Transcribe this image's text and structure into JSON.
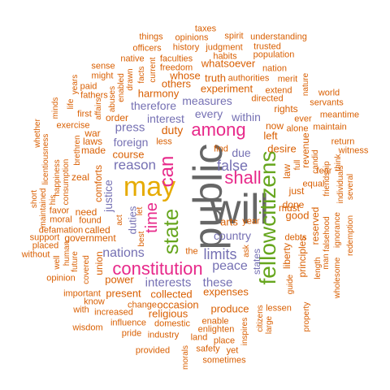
{
  "palette": {
    "orange": "#D95F02",
    "purple": "#7570B3",
    "magenta": "#E7298A",
    "green": "#66A61E",
    "gold": "#E6AB02",
    "gray": "#666666"
  },
  "words": [
    {
      "text": "public",
      "freq": 10,
      "color": "gray"
    },
    {
      "text": "will",
      "freq": 10,
      "color": "gray"
    },
    {
      "text": "may",
      "freq": 7,
      "color": "gold"
    },
    {
      "text": "fellowcitizens",
      "freq": 7,
      "color": "green"
    },
    {
      "text": "state",
      "freq": 6,
      "color": "green"
    },
    {
      "text": "constitution",
      "freq": 6,
      "color": "magenta"
    },
    {
      "text": "shall",
      "freq": 6,
      "color": "magenta"
    },
    {
      "text": "among",
      "freq": 6,
      "color": "magenta"
    },
    {
      "text": "can",
      "freq": 6,
      "color": "magenta"
    },
    {
      "text": "time",
      "freq": 5,
      "color": "magenta"
    },
    {
      "text": "false",
      "freq": 5,
      "color": "purple"
    },
    {
      "text": "limits",
      "freq": 5,
      "color": "purple"
    },
    {
      "text": "reason",
      "freq": 5,
      "color": "purple"
    },
    {
      "text": "nations",
      "freq": 5,
      "color": "purple"
    },
    {
      "text": "peace",
      "freq": 5,
      "color": "purple"
    },
    {
      "text": "interests",
      "freq": 5,
      "color": "purple"
    },
    {
      "text": "these",
      "freq": 5,
      "color": "purple"
    },
    {
      "text": "country",
      "freq": 5,
      "color": "purple"
    },
    {
      "text": "measures",
      "freq": 5,
      "color": "purple"
    },
    {
      "text": "therefore",
      "freq": 4,
      "color": "purple"
    },
    {
      "text": "press",
      "freq": 4,
      "color": "purple"
    },
    {
      "text": "foreign",
      "freq": 4,
      "color": "purple"
    },
    {
      "text": "justice",
      "freq": 4,
      "color": "purple"
    },
    {
      "text": "interest",
      "freq": 4,
      "color": "purple"
    },
    {
      "text": "every",
      "freq": 4,
      "color": "purple"
    },
    {
      "text": "within",
      "freq": 4,
      "color": "purple"
    },
    {
      "text": "due",
      "freq": 4,
      "color": "purple"
    },
    {
      "text": "duties",
      "freq": 4,
      "color": "purple"
    },
    {
      "text": "states",
      "freq": 4,
      "color": "purple"
    },
    {
      "text": "duty",
      "freq": 4,
      "color": "orange"
    },
    {
      "text": "harmony",
      "freq": 3,
      "color": "orange"
    },
    {
      "text": "others",
      "freq": 3,
      "color": "orange"
    },
    {
      "text": "experiment",
      "freq": 3,
      "color": "orange"
    },
    {
      "text": "whatsoever",
      "freq": 3,
      "color": "orange"
    },
    {
      "text": "whose",
      "freq": 3,
      "color": "orange"
    },
    {
      "text": "truth",
      "freq": 3,
      "color": "orange"
    },
    {
      "text": "rights",
      "freq": 3,
      "color": "orange"
    },
    {
      "text": "left",
      "freq": 3,
      "color": "orange"
    },
    {
      "text": "now",
      "freq": 3,
      "color": "orange"
    },
    {
      "text": "desire",
      "freq": 3,
      "color": "orange"
    },
    {
      "text": "must",
      "freq": 3,
      "color": "orange"
    },
    {
      "text": "good",
      "freq": 3,
      "color": "orange"
    },
    {
      "text": "just",
      "freq": 3,
      "color": "orange"
    },
    {
      "text": "done",
      "freq": 3,
      "color": "orange"
    },
    {
      "text": "course",
      "freq": 3,
      "color": "orange"
    },
    {
      "text": "made",
      "freq": 3,
      "color": "orange"
    },
    {
      "text": "zeal",
      "freq": 3,
      "color": "orange"
    },
    {
      "text": "laws",
      "freq": 3,
      "color": "orange"
    },
    {
      "text": "war",
      "freq": 3,
      "color": "orange"
    },
    {
      "text": "order",
      "freq": 3,
      "color": "orange"
    },
    {
      "text": "comforts",
      "freq": 3,
      "color": "orange"
    },
    {
      "text": "need",
      "freq": 3,
      "color": "orange"
    },
    {
      "text": "called",
      "freq": 3,
      "color": "orange"
    },
    {
      "text": "union",
      "freq": 3,
      "color": "orange"
    },
    {
      "text": "power",
      "freq": 3,
      "color": "orange"
    },
    {
      "text": "government",
      "freq": 3,
      "color": "orange"
    },
    {
      "text": "present",
      "freq": 3,
      "color": "orange"
    },
    {
      "text": "collected",
      "freq": 3,
      "color": "orange"
    },
    {
      "text": "religious",
      "freq": 3,
      "color": "orange"
    },
    {
      "text": "occasion",
      "freq": 3,
      "color": "orange"
    },
    {
      "text": "produce",
      "freq": 3,
      "color": "orange"
    },
    {
      "text": "expenses",
      "freq": 3,
      "color": "orange"
    },
    {
      "text": "arts",
      "freq": 3,
      "color": "orange"
    },
    {
      "text": "principles",
      "freq": 3,
      "color": "orange"
    },
    {
      "text": "liberty",
      "freq": 3,
      "color": "orange"
    },
    {
      "text": "reserved",
      "freq": 3,
      "color": "orange"
    },
    {
      "text": "law",
      "freq": 3,
      "color": "orange"
    },
    {
      "text": "revenue",
      "freq": 3,
      "color": "orange"
    },
    {
      "text": "less",
      "freq": 2,
      "color": "orange"
    },
    {
      "text": "taxes",
      "freq": 2,
      "color": "orange"
    },
    {
      "text": "things",
      "freq": 2,
      "color": "orange"
    },
    {
      "text": "opinions",
      "freq": 2,
      "color": "orange"
    },
    {
      "text": "spirit",
      "freq": 2,
      "color": "orange"
    },
    {
      "text": "understanding",
      "freq": 2,
      "color": "orange"
    },
    {
      "text": "officers",
      "freq": 2,
      "color": "orange"
    },
    {
      "text": "history",
      "freq": 2,
      "color": "orange"
    },
    {
      "text": "judgment",
      "freq": 2,
      "color": "orange"
    },
    {
      "text": "trusted",
      "freq": 2,
      "color": "orange"
    },
    {
      "text": "native",
      "freq": 2,
      "color": "orange"
    },
    {
      "text": "faculties",
      "freq": 2,
      "color": "orange"
    },
    {
      "text": "habits",
      "freq": 2,
      "color": "orange"
    },
    {
      "text": "population",
      "freq": 2,
      "color": "orange"
    },
    {
      "text": "sense",
      "freq": 2,
      "color": "orange"
    },
    {
      "text": "freedom",
      "freq": 2,
      "color": "orange"
    },
    {
      "text": "nation",
      "freq": 2,
      "color": "orange"
    },
    {
      "text": "might",
      "freq": 2,
      "color": "orange"
    },
    {
      "text": "authorities",
      "freq": 2,
      "color": "orange"
    },
    {
      "text": "merit",
      "freq": 2,
      "color": "orange"
    },
    {
      "text": "paid",
      "freq": 2,
      "color": "orange"
    },
    {
      "text": "extend",
      "freq": 2,
      "color": "orange"
    },
    {
      "text": "directed",
      "freq": 2,
      "color": "orange"
    },
    {
      "text": "fathers",
      "freq": 2,
      "color": "orange"
    },
    {
      "text": "world",
      "freq": 2,
      "color": "orange"
    },
    {
      "text": "servants",
      "freq": 2,
      "color": "orange"
    },
    {
      "text": "first",
      "freq": 2,
      "color": "orange"
    },
    {
      "text": "meantime",
      "freq": 2,
      "color": "orange"
    },
    {
      "text": "maintain",
      "freq": 2,
      "color": "orange"
    },
    {
      "text": "alone",
      "freq": 2,
      "color": "orange"
    },
    {
      "text": "return",
      "freq": 2,
      "color": "orange"
    },
    {
      "text": "witness",
      "freq": 2,
      "color": "orange"
    },
    {
      "text": "exercise",
      "freq": 2,
      "color": "orange"
    },
    {
      "text": "find",
      "freq": 2,
      "color": "orange"
    },
    {
      "text": "favor",
      "freq": 2,
      "color": "orange"
    },
    {
      "text": "found",
      "freq": 2,
      "color": "orange"
    },
    {
      "text": "moral",
      "freq": 2,
      "color": "orange"
    },
    {
      "text": "defamation",
      "freq": 2,
      "color": "orange"
    },
    {
      "text": "placed",
      "freq": 2,
      "color": "orange"
    },
    {
      "text": "support",
      "freq": 2,
      "color": "orange"
    },
    {
      "text": "without",
      "freq": 2,
      "color": "orange"
    },
    {
      "text": "year",
      "freq": 2,
      "color": "orange"
    },
    {
      "text": "debts",
      "freq": 2,
      "color": "orange"
    },
    {
      "text": "opinion",
      "freq": 2,
      "color": "orange"
    },
    {
      "text": "important",
      "freq": 2,
      "color": "orange"
    },
    {
      "text": "know",
      "freq": 2,
      "color": "orange"
    },
    {
      "text": "with",
      "freq": 2,
      "color": "orange"
    },
    {
      "text": "increased",
      "freq": 2,
      "color": "orange"
    },
    {
      "text": "change",
      "freq": 2,
      "color": "orange"
    },
    {
      "text": "wisdom",
      "freq": 2,
      "color": "orange"
    },
    {
      "text": "influence",
      "freq": 2,
      "color": "orange"
    },
    {
      "text": "domestic",
      "freq": 2,
      "color": "orange"
    },
    {
      "text": "pride",
      "freq": 2,
      "color": "orange"
    },
    {
      "text": "industry",
      "freq": 2,
      "color": "orange"
    },
    {
      "text": "enlighten",
      "freq": 2,
      "color": "orange"
    },
    {
      "text": "enable",
      "freq": 2,
      "color": "orange"
    },
    {
      "text": "land",
      "freq": 2,
      "color": "orange"
    },
    {
      "text": "place",
      "freq": 2,
      "color": "orange"
    },
    {
      "text": "safety",
      "freq": 2,
      "color": "orange"
    },
    {
      "text": "yet",
      "freq": 2,
      "color": "orange"
    },
    {
      "text": "provided",
      "freq": 2,
      "color": "orange"
    },
    {
      "text": "sometimes",
      "freq": 2,
      "color": "orange"
    },
    {
      "text": "lessen",
      "freq": 2,
      "color": "orange"
    },
    {
      "text": "fear",
      "freq": 2,
      "color": "orange"
    },
    {
      "text": "equal",
      "freq": 2,
      "color": "orange"
    },
    {
      "text": "ever",
      "freq": 1,
      "color": "orange"
    },
    {
      "text": "full",
      "freq": 1,
      "color": "orange"
    },
    {
      "text": "years",
      "freq": 1,
      "color": "orange"
    },
    {
      "text": "life",
      "freq": 1,
      "color": "orange"
    },
    {
      "text": "minds",
      "freq": 1,
      "color": "orange"
    },
    {
      "text": "whether",
      "freq": 1,
      "color": "orange"
    },
    {
      "text": "licentiousness",
      "freq": 1,
      "color": "orange"
    },
    {
      "text": "happiness",
      "freq": 1,
      "color": "orange"
    },
    {
      "text": "consumption",
      "freq": 1,
      "color": "orange"
    },
    {
      "text": "brethren",
      "freq": 1,
      "color": "orange"
    },
    {
      "text": "short",
      "freq": 1,
      "color": "orange"
    },
    {
      "text": "maintained",
      "freq": 1,
      "color": "orange"
    },
    {
      "text": "his",
      "freq": 1,
      "color": "orange"
    },
    {
      "text": "human",
      "freq": 1,
      "color": "orange"
    },
    {
      "text": "well",
      "freq": 1,
      "color": "orange"
    },
    {
      "text": "future",
      "freq": 1,
      "color": "orange"
    },
    {
      "text": "covered",
      "freq": 1,
      "color": "orange"
    },
    {
      "text": "current",
      "freq": 1,
      "color": "orange"
    },
    {
      "text": "facts",
      "freq": 1,
      "color": "orange"
    },
    {
      "text": "drawn",
      "freq": 1,
      "color": "orange"
    },
    {
      "text": "enabled",
      "freq": 1,
      "color": "orange"
    },
    {
      "text": "abuses",
      "freq": 1,
      "color": "orange"
    },
    {
      "text": "affairs",
      "freq": 1,
      "color": "orange"
    },
    {
      "text": "act",
      "freq": 1,
      "color": "orange"
    },
    {
      "text": "let",
      "freq": 1,
      "color": "orange"
    },
    {
      "text": "best",
      "freq": 1,
      "color": "orange"
    },
    {
      "text": "the",
      "freq": 1,
      "color": "orange"
    },
    {
      "text": "ask",
      "freq": 1,
      "color": "orange"
    },
    {
      "text": "morals",
      "freq": 1,
      "color": "orange"
    },
    {
      "text": "inspires",
      "freq": 1,
      "color": "orange"
    },
    {
      "text": "citizens",
      "freq": 1,
      "color": "orange"
    },
    {
      "text": "large",
      "freq": 1,
      "color": "orange"
    },
    {
      "text": "guide",
      "freq": 1,
      "color": "orange"
    },
    {
      "text": "property",
      "freq": 1,
      "color": "orange"
    },
    {
      "text": "candid",
      "freq": 1,
      "color": "orange"
    },
    {
      "text": "friendship",
      "freq": 1,
      "color": "orange"
    },
    {
      "text": "think",
      "freq": 1,
      "color": "orange"
    },
    {
      "text": "individuals",
      "freq": 1,
      "color": "orange"
    },
    {
      "text": "several",
      "freq": 1,
      "color": "orange"
    },
    {
      "text": "falsehood",
      "freq": 1,
      "color": "orange"
    },
    {
      "text": "ignorance",
      "freq": 1,
      "color": "orange"
    },
    {
      "text": "length",
      "freq": 1,
      "color": "orange"
    },
    {
      "text": "man",
      "freq": 1,
      "color": "orange"
    },
    {
      "text": "wholesome",
      "freq": 1,
      "color": "orange"
    },
    {
      "text": "redemption",
      "freq": 1,
      "color": "orange"
    },
    {
      "text": "nature",
      "freq": 1,
      "color": "orange"
    }
  ]
}
